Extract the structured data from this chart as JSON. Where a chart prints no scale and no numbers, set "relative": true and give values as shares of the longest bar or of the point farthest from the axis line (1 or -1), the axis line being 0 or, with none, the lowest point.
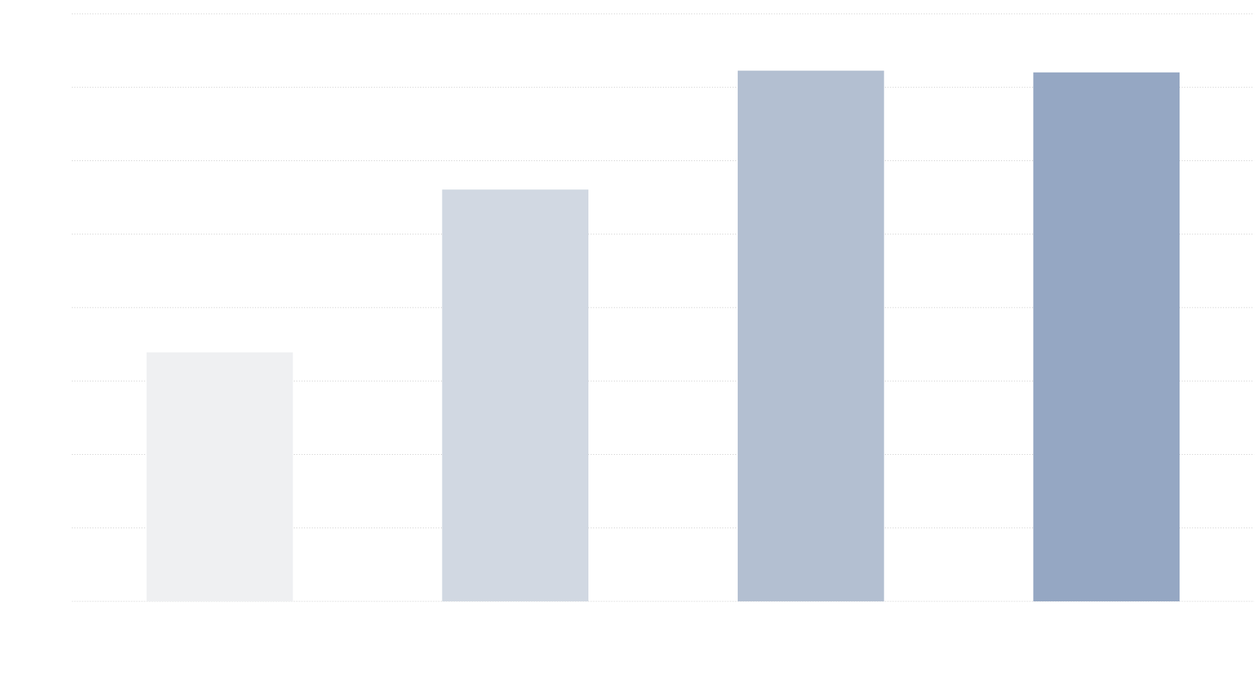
{
  "chart_data": {
    "type": "bar",
    "relative": true,
    "grid": "y",
    "categories": [
      null,
      null,
      null,
      null
    ],
    "values": [
      0.469,
      0.776,
      1,
      0.997
    ],
    "colors": [
      "#eff0f2",
      "#d1d8e2",
      "#b3bfd1",
      "#95a7c3"
    ]
  }
}
